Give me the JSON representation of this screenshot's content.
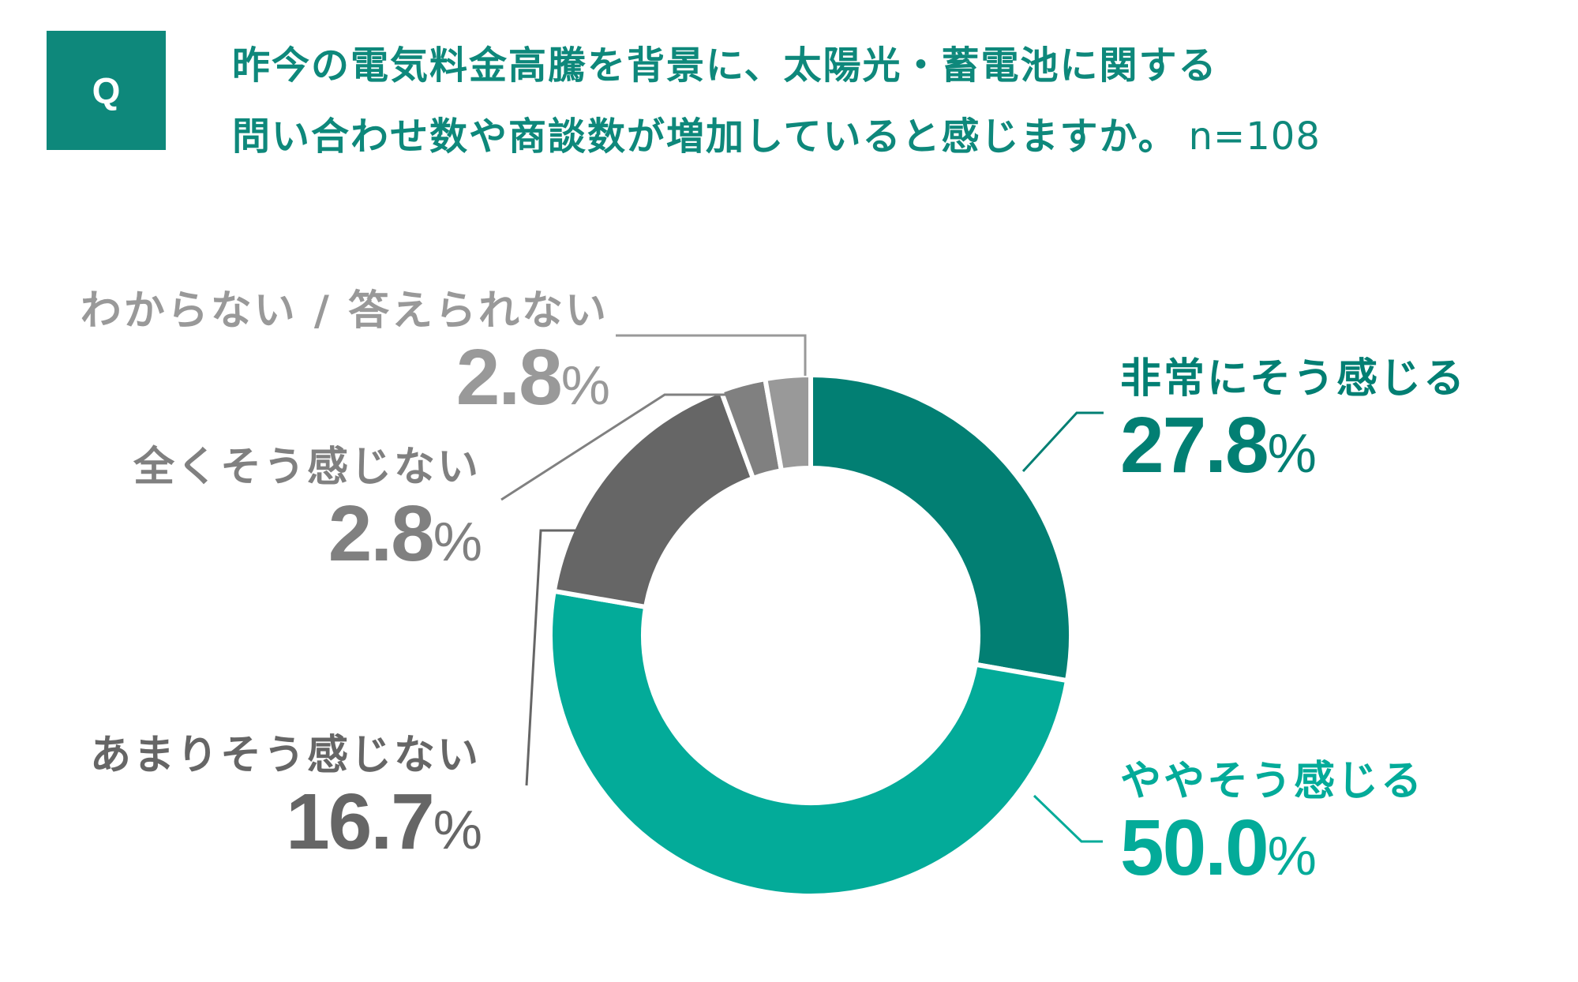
{
  "header": {
    "badge": "Q",
    "title_line1": "昨今の電気料金高騰を背景に、太陽光・蓄電池に関する",
    "title_line2": "問い合わせ数や商談数が増加していると感じますか。",
    "sample_size": "n=108"
  },
  "colors": {
    "brand": "#0e887b",
    "very_much": "#027f73",
    "somewhat": "#03ab99",
    "not_much": "#666666",
    "not_at_all": "#808080",
    "dont_know": "#999999"
  },
  "labels": {
    "very_much": {
      "name": "非常にそう感じる",
      "value": "27.8",
      "unit": "%"
    },
    "somewhat": {
      "name": "ややそう感じる",
      "value": "50.0",
      "unit": "%"
    },
    "not_much": {
      "name": "あまりそう感じない",
      "value": "16.7",
      "unit": "%"
    },
    "not_at_all": {
      "name": "全くそう感じない",
      "value": "2.8",
      "unit": "%"
    },
    "dont_know": {
      "name": "わからない / 答えられない",
      "value": "2.8",
      "unit": "%"
    }
  },
  "chart_data": {
    "type": "pie",
    "variant": "donut",
    "title": "昨今の電気料金高騰を背景に、太陽光・蓄電池に関する問い合わせ数や商談数が増加していると感じますか。",
    "n": 108,
    "categories": [
      "非常にそう感じる",
      "ややそう感じる",
      "あまりそう感じない",
      "全くそう感じない",
      "わからない / 答えられない"
    ],
    "values": [
      27.8,
      50.0,
      16.7,
      2.8,
      2.8
    ],
    "unit": "%",
    "colors": [
      "#027f73",
      "#03ab99",
      "#666666",
      "#808080",
      "#999999"
    ],
    "start_angle": "12 o'clock, clockwise",
    "legend": "none (callout labels)"
  }
}
